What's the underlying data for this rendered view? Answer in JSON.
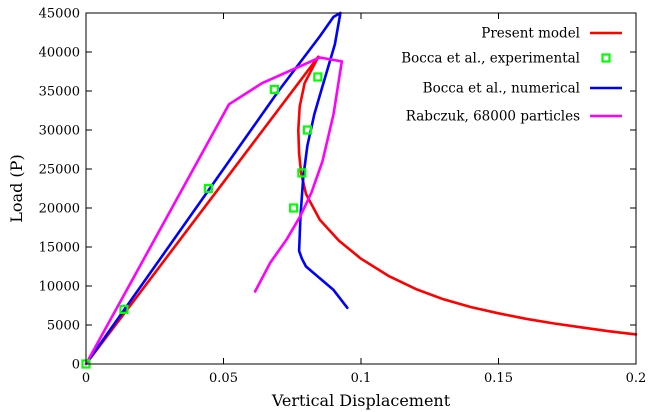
{
  "chart_data": {
    "type": "line",
    "xlabel": "Vertical Displacement",
    "ylabel": "Load (P)",
    "xlim": [
      0,
      0.2
    ],
    "ylim": [
      0,
      45000
    ],
    "xticks": [
      0,
      0.05,
      0.1,
      0.15,
      0.2
    ],
    "xtick_labels": [
      "0",
      "0.05",
      "0.1",
      "0.15",
      "0.2"
    ],
    "yticks": [
      0,
      5000,
      10000,
      15000,
      20000,
      25000,
      30000,
      35000,
      40000,
      45000
    ],
    "ytick_labels": [
      "0",
      "5000",
      "10000",
      "15000",
      "20000",
      "25000",
      "30000",
      "35000",
      "40000",
      "45000"
    ],
    "grid": false,
    "legend_position": "top-right",
    "series": [
      {
        "name": "Present model",
        "kind": "line",
        "color": "#ff0000",
        "x": [
          0,
          0.0845,
          0.0795,
          0.0777,
          0.0772,
          0.0775,
          0.0782,
          0.08,
          0.085,
          0.092,
          0.1,
          0.11,
          0.12,
          0.13,
          0.14,
          0.15,
          0.16,
          0.17,
          0.18,
          0.19,
          0.2
        ],
        "y": [
          0,
          39400,
          36000,
          33000,
          30000,
          27000,
          24500,
          21800,
          18500,
          15800,
          13500,
          11300,
          9600,
          8300,
          7300,
          6500,
          5800,
          5200,
          4700,
          4200,
          3800
        ]
      },
      {
        "name": "Bocca et al., experimental",
        "kind": "scatter",
        "color": "#00ff00",
        "x": [
          0,
          0.0138,
          0.0445,
          0.0685,
          0.0843,
          0.0805,
          0.0785,
          0.0755
        ],
        "y": [
          0,
          7000,
          22500,
          35200,
          36800,
          30000,
          24500,
          20000
        ]
      },
      {
        "name": "Bocca et al., numerical",
        "kind": "line",
        "color": "#0000ff",
        "x": [
          0,
          0.07,
          0.085,
          0.09,
          0.0925,
          0.0905,
          0.088,
          0.0855,
          0.083,
          0.0805,
          0.079,
          0.078,
          0.0775,
          0.0785,
          0.08,
          0.085,
          0.09,
          0.095
        ],
        "y": [
          0,
          35000,
          42000,
          44500,
          45000,
          41000,
          38000,
          35000,
          32000,
          28000,
          24000,
          19000,
          14500,
          13500,
          12500,
          11000,
          9500,
          7200
        ]
      },
      {
        "name": "Rabczuk, 68000 particles",
        "kind": "line",
        "color": "#ff00ff",
        "x": [
          0,
          0.052,
          0.064,
          0.085,
          0.093,
          0.09,
          0.086,
          0.082,
          0.078,
          0.073,
          0.067,
          0.0615
        ],
        "y": [
          0,
          33300,
          36000,
          39300,
          38800,
          32000,
          26000,
          22000,
          19000,
          16000,
          13000,
          9300
        ]
      }
    ]
  }
}
